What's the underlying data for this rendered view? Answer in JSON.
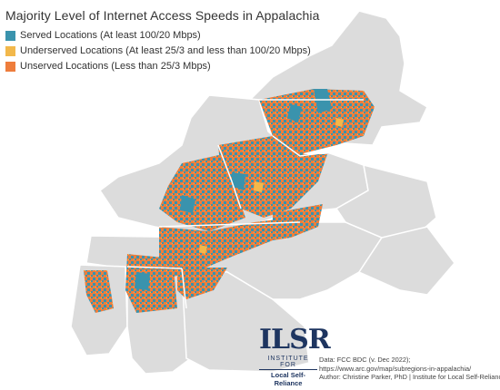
{
  "map": {
    "title": "Majority Level of Internet Access Speeds in Appalachia",
    "legend": [
      {
        "label": "Served Locations (At least 100/20 Mbps)",
        "color": "#3a93ad"
      },
      {
        "label": "Underserved Locations (At least 25/3 and less than 100/20 Mbps)",
        "color": "#f2b84b"
      },
      {
        "label": "Unserved Locations (Less than 25/3 Mbps)",
        "color": "#ee7d3c"
      }
    ],
    "colors": {
      "background_states": "#dcdcdc",
      "state_borders": "#ffffff",
      "served": "#3a93ad",
      "underserved": "#f2b84b",
      "unserved": "#ee7d3c"
    }
  },
  "logo": {
    "mark": "ILSR",
    "line1": "INSTITUTE FOR",
    "line2": "Local Self-Reliance"
  },
  "source": {
    "line1": "Data: FCC BDC (v. Dec 2022);",
    "line2": "https://www.arc.gov/map/subregions-in-appalachia/",
    "line3": "Author: Christine Parker, PhD | Institute for Local Self-Reliance"
  }
}
